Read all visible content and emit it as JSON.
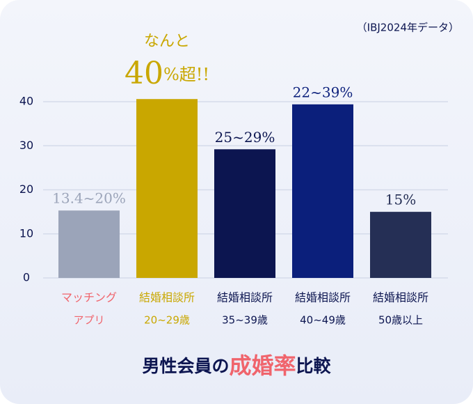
{
  "chart_data": {
    "type": "bar",
    "subtitle": "（IBJ2024年データ）",
    "title_parts": [
      "男性会員の",
      "成婚率",
      "比較"
    ],
    "categories": [
      [
        "マッチング",
        "アプリ"
      ],
      [
        "結婚相談所",
        "20~29歳"
      ],
      [
        "結婚相談所",
        "35~39歳"
      ],
      [
        "結婚相談所",
        "40~49歳"
      ],
      [
        "結婚相談所",
        "50歳以上"
      ]
    ],
    "values": [
      15.3,
      40.6,
      29.2,
      39.4,
      15.0
    ],
    "annotations": [
      "13.4~20%",
      {
        "prefix": "なんと",
        "number": "40",
        "suffix": "%超!!"
      },
      "25~29%",
      "22~39%",
      "15%"
    ],
    "colors": [
      "#9ba4b9",
      "#c9a700",
      "#0c1550",
      "#0b1f7b",
      "#252f55"
    ],
    "label_colors": [
      "#f0646c",
      "#c9a700",
      "#0c1550",
      "#0c1550",
      "#0c1550"
    ],
    "ylim": [
      0,
      40
    ],
    "yticks": [
      0,
      10,
      20,
      30,
      40
    ],
    "grid": true
  }
}
